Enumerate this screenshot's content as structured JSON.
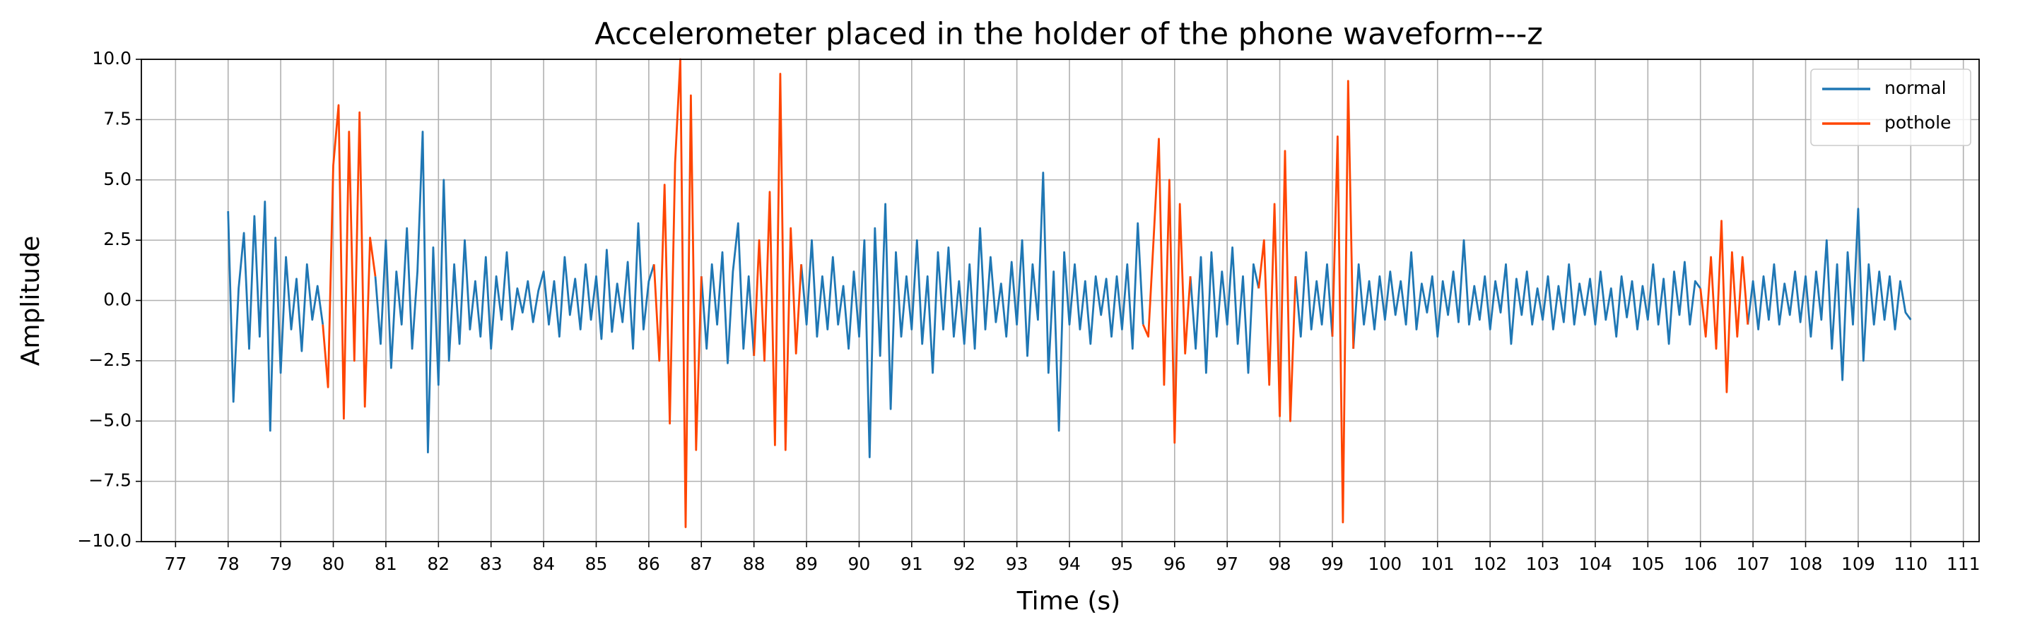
{
  "chart_data": {
    "type": "line",
    "title": "Accelerometer placed in the holder of the phone waveform---z",
    "x_label": "Time (s)",
    "y_label": "Amplitude",
    "x": [
      78,
      78.1,
      78.2,
      78.3,
      78.4,
      78.5,
      78.6,
      78.7,
      78.8,
      78.9,
      79,
      79.1,
      79.2,
      79.3,
      79.4,
      79.5,
      79.6,
      79.7,
      79.8,
      79.9,
      80,
      80.1,
      80.2,
      80.3,
      80.4,
      80.5,
      80.6,
      80.7,
      80.8,
      80.9,
      81,
      81.1,
      81.2,
      81.3,
      81.4,
      81.5,
      81.6,
      81.7,
      81.8,
      81.9,
      82,
      82.1,
      82.2,
      82.3,
      82.4,
      82.5,
      82.6,
      82.7,
      82.8,
      82.9,
      83,
      83.1,
      83.2,
      83.3,
      83.4,
      83.5,
      83.6,
      83.7,
      83.8,
      83.9,
      84,
      84.1,
      84.2,
      84.3,
      84.4,
      84.5,
      84.6,
      84.7,
      84.8,
      84.9,
      85,
      85.1,
      85.2,
      85.3,
      85.4,
      85.5,
      85.6,
      85.7,
      85.8,
      85.9,
      86,
      86.1,
      86.2,
      86.3,
      86.4,
      86.5,
      86.6,
      86.7,
      86.8,
      86.9,
      87,
      87.1,
      87.2,
      87.3,
      87.4,
      87.5,
      87.6,
      87.7,
      87.8,
      87.9,
      88,
      88.1,
      88.2,
      88.3,
      88.4,
      88.5,
      88.6,
      88.7,
      88.8,
      88.9,
      89,
      89.1,
      89.2,
      89.3,
      89.4,
      89.5,
      89.6,
      89.7,
      89.8,
      89.9,
      90,
      90.1,
      90.2,
      90.3,
      90.4,
      90.5,
      90.6,
      90.7,
      90.8,
      90.9,
      91,
      91.1,
      91.2,
      91.3,
      91.4,
      91.5,
      91.6,
      91.7,
      91.8,
      91.9,
      92,
      92.1,
      92.2,
      92.3,
      92.4,
      92.5,
      92.6,
      92.7,
      92.8,
      92.9,
      93,
      93.1,
      93.2,
      93.3,
      93.4,
      93.5,
      93.6,
      93.7,
      93.8,
      93.9,
      94,
      94.1,
      94.2,
      94.3,
      94.4,
      94.5,
      94.6,
      94.7,
      94.8,
      94.9,
      95,
      95.1,
      95.2,
      95.3,
      95.4,
      95.5,
      95.6,
      95.7,
      95.8,
      95.9,
      96,
      96.1,
      96.2,
      96.3,
      96.4,
      96.5,
      96.6,
      96.7,
      96.8,
      96.9,
      97,
      97.1,
      97.2,
      97.3,
      97.4,
      97.5,
      97.6,
      97.7,
      97.8,
      97.9,
      98,
      98.1,
      98.2,
      98.3,
      98.4,
      98.5,
      98.6,
      98.7,
      98.8,
      98.9,
      99,
      99.1,
      99.2,
      99.3,
      99.4,
      99.5,
      99.6,
      99.7,
      99.8,
      99.9,
      100,
      100.1,
      100.2,
      100.3,
      100.4,
      100.5,
      100.6,
      100.7,
      100.8,
      100.9,
      101,
      101.1,
      101.2,
      101.3,
      101.4,
      101.5,
      101.6,
      101.7,
      101.8,
      101.9,
      102,
      102.1,
      102.2,
      102.3,
      102.4,
      102.5,
      102.6,
      102.7,
      102.8,
      102.9,
      103,
      103.1,
      103.2,
      103.3,
      103.4,
      103.5,
      103.6,
      103.7,
      103.8,
      103.9,
      104,
      104.1,
      104.2,
      104.3,
      104.4,
      104.5,
      104.6,
      104.7,
      104.8,
      104.9,
      105,
      105.1,
      105.2,
      105.3,
      105.4,
      105.5,
      105.6,
      105.7,
      105.8,
      105.9,
      106,
      106.1,
      106.2,
      106.3,
      106.4,
      106.5,
      106.6,
      106.7,
      106.8,
      106.9,
      107,
      107.1,
      107.2,
      107.3,
      107.4,
      107.5,
      107.6,
      107.7,
      107.8,
      107.9,
      108,
      108.1,
      108.2,
      108.3,
      108.4,
      108.5,
      108.6,
      108.7,
      108.8,
      108.9,
      109,
      109.1,
      109.2,
      109.3,
      109.4,
      109.5,
      109.6,
      109.7,
      109.8,
      109.9,
      110
    ],
    "series": [
      {
        "name": "normal",
        "color": "#1f77b4",
        "values": [
          3.7,
          -4.2,
          0.5,
          2.8,
          -2.0,
          3.5,
          -1.5,
          4.1,
          -5.4,
          2.6,
          -3.0,
          1.8,
          -1.2,
          0.9,
          -2.1,
          1.5,
          -0.8,
          0.6,
          -1.0,
          null,
          null,
          null,
          null,
          null,
          null,
          null,
          null,
          null,
          1.0,
          -1.8,
          2.5,
          -2.8,
          1.2,
          -1.0,
          3.0,
          -2.0,
          1.2,
          7.0,
          -6.3,
          2.2,
          -3.5,
          5.0,
          -2.5,
          1.5,
          -1.8,
          2.5,
          -1.2,
          0.8,
          -1.5,
          1.8,
          -2.0,
          1.0,
          -0.8,
          2.0,
          -1.2,
          0.5,
          -0.5,
          0.8,
          -0.9,
          0.4,
          1.2,
          -1.0,
          0.8,
          -1.5,
          1.8,
          -0.6,
          0.9,
          -1.2,
          1.5,
          -0.8,
          1.0,
          -1.6,
          2.1,
          -1.3,
          0.7,
          -0.9,
          1.6,
          -2.0,
          3.2,
          -1.2,
          0.8,
          1.5,
          null,
          null,
          null,
          null,
          null,
          null,
          null,
          null,
          1.0,
          -2.0,
          1.5,
          -1.0,
          2.0,
          -2.6,
          1.2,
          3.2,
          -2.0,
          1.0,
          -2.3,
          null,
          null,
          null,
          null,
          null,
          null,
          null,
          null,
          1.5,
          -1.0,
          2.5,
          -1.5,
          1.0,
          -1.2,
          1.8,
          -1.0,
          0.6,
          -2.0,
          1.2,
          -1.5,
          2.5,
          -6.5,
          3.0,
          -2.3,
          4.0,
          -4.5,
          2.0,
          -1.5,
          1.0,
          -1.2,
          2.5,
          -1.8,
          1.0,
          -3.0,
          2.0,
          -1.2,
          2.2,
          -1.5,
          0.8,
          -1.8,
          1.5,
          -2.0,
          3.0,
          -1.2,
          1.8,
          -0.9,
          0.7,
          -1.5,
          1.6,
          -1.0,
          2.5,
          -2.3,
          1.5,
          -0.8,
          5.3,
          -3.0,
          1.2,
          -5.4,
          2.0,
          -1.0,
          1.5,
          -1.2,
          0.8,
          -1.8,
          1.0,
          -0.6,
          0.9,
          -1.5,
          1.0,
          -1.2,
          1.5,
          -2.0,
          3.2,
          -1.0,
          null,
          null,
          null,
          null,
          null,
          null,
          null,
          null,
          1.0,
          -2.0,
          1.8,
          -3.0,
          2.0,
          -1.5,
          1.2,
          -1.0,
          2.2,
          -1.8,
          1.0,
          -3.0,
          1.5,
          0.5,
          null,
          null,
          null,
          null,
          null,
          null,
          1.0,
          -1.5,
          2.0,
          -1.2,
          0.8,
          -1.0,
          1.5,
          -1.5,
          null,
          null,
          null,
          -2.0,
          1.5,
          -1.0,
          0.8,
          -1.2,
          1.0,
          -0.8,
          1.2,
          -0.6,
          0.8,
          -1.0,
          2.0,
          -1.2,
          0.7,
          -0.5,
          1.0,
          -1.5,
          0.8,
          -0.6,
          1.2,
          -0.9,
          2.5,
          -1.0,
          0.6,
          -0.8,
          1.0,
          -1.2,
          0.8,
          -0.5,
          1.5,
          -1.8,
          0.9,
          -0.6,
          1.2,
          -1.0,
          0.5,
          -0.8,
          1.0,
          -1.2,
          0.6,
          -0.9,
          1.5,
          -1.0,
          0.7,
          -0.6,
          0.9,
          -1.0,
          1.2,
          -0.8,
          0.5,
          -1.5,
          1.0,
          -0.7,
          0.8,
          -1.2,
          0.6,
          -0.8,
          1.5,
          -1.0,
          0.9,
          -1.8,
          1.2,
          -0.6,
          1.6,
          -1.0,
          0.8,
          0.5,
          null,
          null,
          null,
          null,
          null,
          null,
          null,
          null,
          -1.0,
          0.8,
          -1.2,
          1.0,
          -0.8,
          1.5,
          -1.0,
          0.7,
          -0.6,
          1.2,
          -0.9,
          1.0,
          -1.5,
          1.2,
          -0.8,
          2.5,
          -2.0,
          1.5,
          -3.3,
          2.0,
          -1.0,
          3.8,
          -2.5,
          1.5,
          -1.0,
          1.2,
          -0.8,
          1.0,
          -1.2,
          0.8,
          -0.5,
          -0.8
        ]
      },
      {
        "name": "pothole",
        "color": "#ff4500",
        "values": [
          null,
          null,
          null,
          null,
          null,
          null,
          null,
          null,
          null,
          null,
          null,
          null,
          null,
          null,
          null,
          null,
          null,
          null,
          -1.0,
          -3.6,
          5.6,
          8.1,
          -4.9,
          7.0,
          -2.5,
          7.8,
          -4.4,
          2.6,
          1.0,
          null,
          null,
          null,
          null,
          null,
          null,
          null,
          null,
          null,
          null,
          null,
          null,
          null,
          null,
          null,
          null,
          null,
          null,
          null,
          null,
          null,
          null,
          null,
          null,
          null,
          null,
          null,
          null,
          null,
          null,
          null,
          null,
          null,
          null,
          null,
          null,
          null,
          null,
          null,
          null,
          null,
          null,
          null,
          null,
          null,
          null,
          null,
          null,
          null,
          null,
          null,
          null,
          1.5,
          -2.5,
          4.8,
          -5.1,
          5.7,
          10.0,
          -9.4,
          8.5,
          -6.2,
          1.0,
          null,
          null,
          null,
          null,
          null,
          null,
          null,
          null,
          null,
          -2.3,
          2.5,
          -2.5,
          4.5,
          -6.0,
          9.4,
          -6.2,
          3.0,
          -2.2,
          1.5,
          null,
          null,
          null,
          null,
          null,
          null,
          null,
          null,
          null,
          null,
          null,
          null,
          null,
          null,
          null,
          null,
          null,
          null,
          null,
          null,
          null,
          null,
          null,
          null,
          null,
          null,
          null,
          null,
          null,
          null,
          null,
          null,
          null,
          null,
          null,
          null,
          null,
          null,
          null,
          null,
          null,
          null,
          null,
          null,
          null,
          null,
          null,
          null,
          null,
          null,
          null,
          null,
          null,
          null,
          null,
          null,
          null,
          null,
          null,
          null,
          null,
          null,
          null,
          null,
          -1.0,
          -1.5,
          2.5,
          6.7,
          -3.5,
          5.0,
          -5.9,
          4.0,
          -2.2,
          1.0,
          null,
          null,
          null,
          null,
          null,
          null,
          null,
          null,
          null,
          null,
          null,
          null,
          0.5,
          2.5,
          -3.5,
          4.0,
          -4.8,
          6.2,
          -5.0,
          1.0,
          null,
          null,
          null,
          null,
          null,
          null,
          -1.5,
          6.8,
          -9.2,
          9.1,
          -2.0,
          null,
          null,
          null,
          null,
          null,
          null,
          null,
          null,
          null,
          null,
          null,
          null,
          null,
          null,
          null,
          null,
          null,
          null,
          null,
          null,
          null,
          null,
          null,
          null,
          null,
          null,
          null,
          null,
          null,
          null,
          null,
          null,
          null,
          null,
          null,
          null,
          null,
          null,
          null,
          null,
          null,
          null,
          null,
          null,
          null,
          null,
          null,
          null,
          null,
          null,
          null,
          null,
          null,
          null,
          null,
          null,
          null,
          null,
          null,
          null,
          null,
          null,
          null,
          null,
          null,
          0.5,
          -1.5,
          1.8,
          -2.0,
          3.3,
          -3.8,
          2.0,
          -1.5,
          1.8,
          -1.0,
          null,
          null,
          null,
          null,
          null,
          null,
          null,
          null,
          null,
          null,
          null,
          null,
          null,
          null,
          null,
          null,
          null,
          null,
          null,
          null,
          null,
          null,
          null,
          null,
          null,
          null,
          null,
          null,
          null,
          null,
          null
        ]
      }
    ],
    "xlim": [
      76.35,
      111.3
    ],
    "ylim": [
      -10,
      10
    ],
    "xticks": [
      77,
      78,
      79,
      80,
      81,
      82,
      83,
      84,
      85,
      86,
      87,
      88,
      89,
      90,
      91,
      92,
      93,
      94,
      95,
      96,
      97,
      98,
      99,
      100,
      101,
      102,
      103,
      104,
      105,
      106,
      107,
      108,
      109,
      110,
      111
    ],
    "yticks": [
      {
        "value": -10,
        "label": "−10.0"
      },
      {
        "value": -7.5,
        "label": "−7.5"
      },
      {
        "value": -5,
        "label": "−5.0"
      },
      {
        "value": -2.5,
        "label": "−2.5"
      },
      {
        "value": 0,
        "label": "0.0"
      },
      {
        "value": 2.5,
        "label": "2.5"
      },
      {
        "value": 5,
        "label": "5.0"
      },
      {
        "value": 7.5,
        "label": "7.5"
      },
      {
        "value": 10,
        "label": "10.0"
      }
    ],
    "grid": true,
    "legend": "upper right"
  }
}
